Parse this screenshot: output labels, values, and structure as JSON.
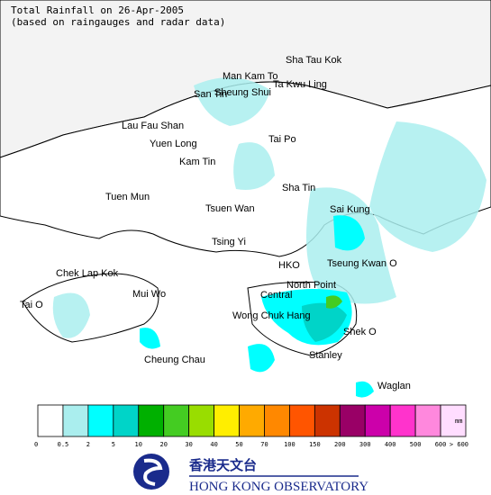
{
  "header": {
    "title": "Total Rainfall on 26-Apr-2005",
    "subtitle": "(based on raingauges and radar data)"
  },
  "places": [
    "Sha Tau Kok",
    "Man Kam To",
    "Ta Kwu Ling",
    "San Tin",
    "Sheung Shui",
    "Lau Fau Shan",
    "Yuen Long",
    "Tai Po",
    "Kam Tin",
    "Sha Tin",
    "Tuen Mun",
    "Tsuen Wan",
    "Sai Kung",
    "Tsing Yi",
    "HKO",
    "Tseung Kwan O",
    "Chek Lap Kok",
    "North Point",
    "Mui Wo",
    "Central",
    "Tai O",
    "Wong Chuk Hang",
    "Shek O",
    "Cheung Chau",
    "Stanley",
    "Waglan"
  ],
  "legend": {
    "colors": [
      "#ffffff",
      "#aaeeee",
      "#00ffff",
      "#00d4c8",
      "#00b000",
      "#44cc22",
      "#99dd00",
      "#ffee00",
      "#ffaa00",
      "#ff8800",
      "#ff5500",
      "#cc3300",
      "#990066",
      "#cc00aa",
      "#ff33cc",
      "#ff88dd",
      "#ffddff"
    ],
    "ticks": [
      "0",
      "0.5",
      "2",
      "5",
      "10",
      "20",
      "30",
      "40",
      "50",
      "70",
      "100",
      "150",
      "200",
      "300",
      "400",
      "500",
      "600",
      "> 600"
    ],
    "unit": "mm"
  },
  "logo": {
    "chinese": "香港天文台",
    "english": "HONG KONG OBSERVATORY"
  }
}
